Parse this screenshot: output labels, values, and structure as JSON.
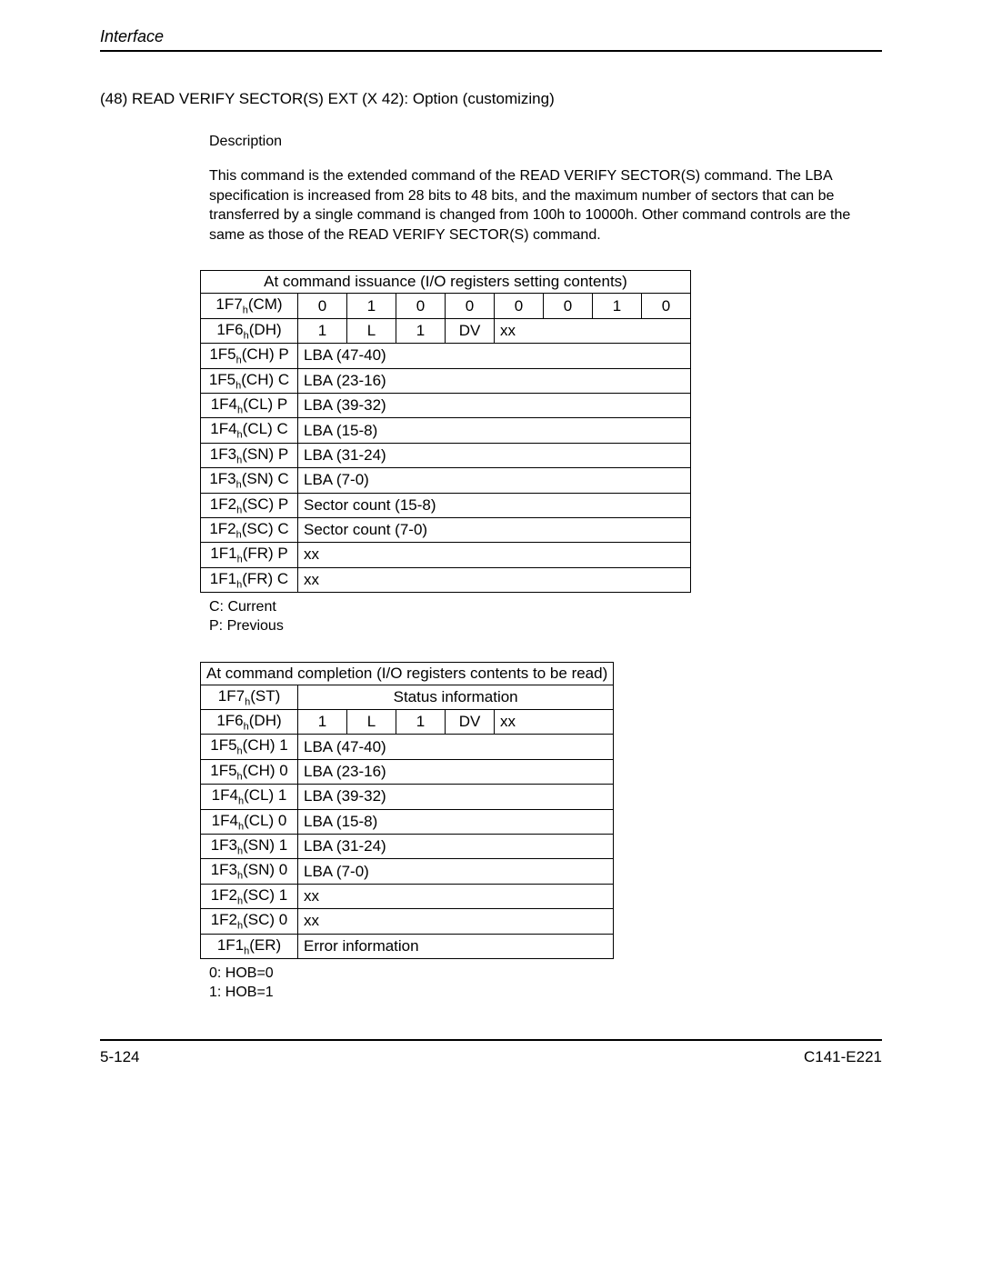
{
  "header": {
    "title": "Interface"
  },
  "section": {
    "number_title": "(48)  READ VERIFY SECTOR(S) EXT (X 42):  Option (customizing)",
    "desc_label": "Description",
    "desc_text": "This command is the extended command of the READ VERIFY SECTOR(S) command.  The LBA specification is increased from 28 bits to 48 bits, and the maximum number of sectors that can be transferred by a single command is changed from 100h to 10000h.  Other command controls are the same as those of the READ VERIFY SECTOR(S) command."
  },
  "table1": {
    "title": "At command issuance (I/O registers setting contents)",
    "r_cm": {
      "label_a": "1F7",
      "label_b": "(CM)",
      "bits": [
        "0",
        "1",
        "0",
        "0",
        "0",
        "0",
        "1",
        "0"
      ]
    },
    "r_dh": {
      "label_a": "1F6",
      "label_b": "(DH)",
      "c0": "1",
      "c1": "L",
      "c2": "1",
      "c3": "DV",
      "rest": "xx"
    },
    "rows": [
      {
        "label_a": "1F5",
        "label_b": "(CH) P",
        "val": "LBA (47-40)"
      },
      {
        "label_a": "1F5",
        "label_b": "(CH) C",
        "val": "LBA (23-16)"
      },
      {
        "label_a": "1F4",
        "label_b": "(CL) P",
        "val": "LBA (39-32)"
      },
      {
        "label_a": "1F4",
        "label_b": "(CL) C",
        "val": "LBA (15-8)"
      },
      {
        "label_a": "1F3",
        "label_b": "(SN) P",
        "val": "LBA (31-24)"
      },
      {
        "label_a": "1F3",
        "label_b": "(SN) C",
        "val": "LBA (7-0)"
      },
      {
        "label_a": "1F2",
        "label_b": "(SC) P",
        "val": "Sector count (15-8)"
      },
      {
        "label_a": "1F2",
        "label_b": "(SC) C",
        "val": "Sector count (7-0)"
      },
      {
        "label_a": "1F1",
        "label_b": "(FR) P",
        "val": "xx"
      },
      {
        "label_a": "1F1",
        "label_b": "(FR) C",
        "val": "xx"
      }
    ],
    "note1": "C:  Current",
    "note2": "P:  Previous"
  },
  "table2": {
    "title": "At command completion (I/O registers contents to be read)",
    "r_st": {
      "label_a": "1F7",
      "label_b": "(ST)",
      "val": "Status information"
    },
    "r_dh": {
      "label_a": "1F6",
      "label_b": "(DH)",
      "c0": "1",
      "c1": "L",
      "c2": "1",
      "c3": "DV",
      "rest": "xx"
    },
    "rows": [
      {
        "label_a": "1F5",
        "label_b": "(CH) 1",
        "val": "LBA (47-40)"
      },
      {
        "label_a": "1F5",
        "label_b": "(CH) 0",
        "val": "LBA (23-16)"
      },
      {
        "label_a": "1F4",
        "label_b": "(CL) 1",
        "val": "LBA (39-32)"
      },
      {
        "label_a": "1F4",
        "label_b": "(CL) 0",
        "val": "LBA (15-8)"
      },
      {
        "label_a": "1F3",
        "label_b": "(SN) 1",
        "val": "LBA (31-24)"
      },
      {
        "label_a": "1F3",
        "label_b": "(SN) 0",
        "val": "LBA (7-0)"
      },
      {
        "label_a": "1F2",
        "label_b": "(SC) 1",
        "val": "xx"
      },
      {
        "label_a": "1F2",
        "label_b": "(SC) 0",
        "val": "xx"
      },
      {
        "label_a": "1F1",
        "label_b": "(ER)",
        "val": "Error information"
      }
    ],
    "note1": "0:  HOB=0",
    "note2": "1:  HOB=1"
  },
  "footer": {
    "left": "5-124",
    "right": "C141-E221"
  }
}
